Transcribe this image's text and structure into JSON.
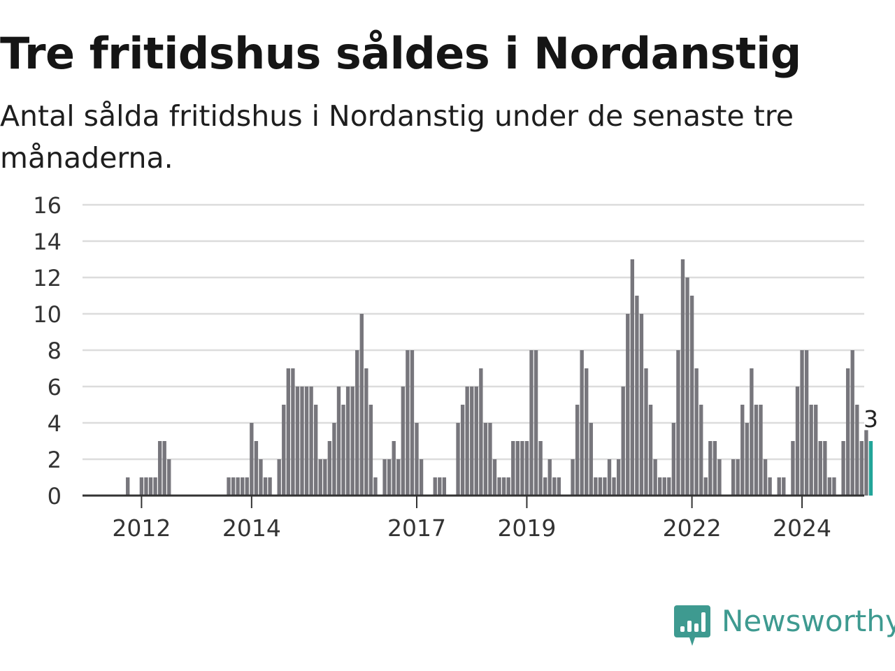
{
  "title": "Tre fritidshus såldes i Nordanstig",
  "subtitle": "Antal sålda fritidshus i Nordanstig under de senaste tre månaderna.",
  "brand": {
    "name": "Newsworthy",
    "color": "#3e9a90",
    "icon": "newsworthy-logo-icon"
  },
  "colors": {
    "bar": "#77767c",
    "highlight": "#22a599",
    "grid": "#dcdcdc",
    "axis": "#333333"
  },
  "chart_data": {
    "type": "bar",
    "title": "Tre fritidshus såldes i Nordanstig",
    "subtitle": "Antal sålda fritidshus i Nordanstig under de senaste tre månaderna.",
    "xlabel": "",
    "ylabel": "",
    "ylim": [
      0,
      16
    ],
    "yticks": [
      0,
      2,
      4,
      6,
      8,
      10,
      12,
      14,
      16
    ],
    "grid": true,
    "legend": "none",
    "x_start": "2011-01",
    "x_unit": "month",
    "x_ticks": [
      {
        "label": "2012",
        "date": "2012-01"
      },
      {
        "label": "2014",
        "date": "2014-01"
      },
      {
        "label": "2017",
        "date": "2017-01"
      },
      {
        "label": "2019",
        "date": "2019-01"
      },
      {
        "label": "2022",
        "date": "2022-01"
      },
      {
        "label": "2024",
        "date": "2024-01"
      }
    ],
    "values": [
      0,
      0,
      0,
      0,
      0,
      0,
      0,
      0,
      0,
      1,
      0,
      0,
      1,
      1,
      1,
      1,
      3,
      3,
      2,
      0,
      0,
      0,
      0,
      0,
      0,
      0,
      0,
      0,
      0,
      0,
      0,
      1,
      1,
      1,
      1,
      1,
      4,
      3,
      2,
      1,
      1,
      0,
      2,
      5,
      7,
      7,
      6,
      6,
      6,
      6,
      5,
      2,
      2,
      3,
      4,
      6,
      5,
      6,
      6,
      8,
      10,
      7,
      5,
      1,
      0,
      2,
      2,
      3,
      2,
      6,
      8,
      8,
      4,
      2,
      0,
      0,
      1,
      1,
      1,
      0,
      0,
      4,
      5,
      6,
      6,
      6,
      7,
      4,
      4,
      2,
      1,
      1,
      1,
      3,
      3,
      3,
      3,
      8,
      8,
      3,
      1,
      2,
      1,
      1,
      0,
      0,
      2,
      5,
      8,
      7,
      4,
      1,
      1,
      1,
      2,
      1,
      2,
      6,
      10,
      13,
      11,
      10,
      7,
      5,
      2,
      1,
      1,
      1,
      4,
      8,
      13,
      12,
      11,
      7,
      5,
      1,
      3,
      3,
      2,
      0,
      0,
      2,
      2,
      5,
      4,
      7,
      5,
      5,
      2,
      1,
      0,
      1,
      1,
      0,
      3,
      6,
      8,
      8,
      5,
      5,
      3,
      3,
      1,
      1,
      0,
      3,
      7,
      8,
      5,
      3,
      3.6,
      3
    ],
    "highlight_last": true,
    "data_label": {
      "text": "3"
    }
  }
}
